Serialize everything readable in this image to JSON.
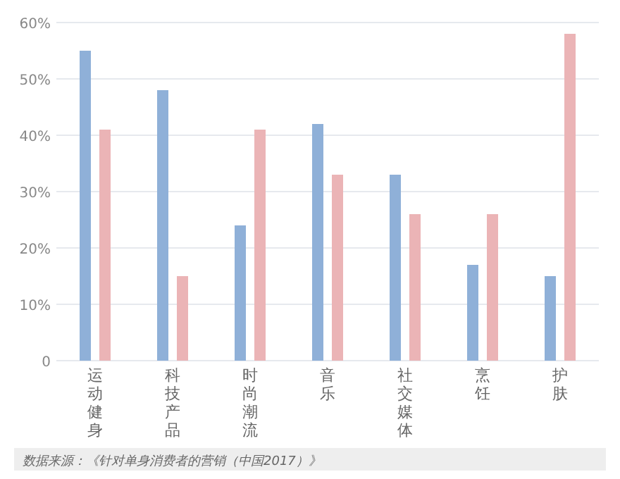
{
  "chart_data": {
    "type": "bar",
    "categories": [
      "运动健身",
      "科技产品",
      "时尚潮流",
      "音乐",
      "社交媒体",
      "烹饪",
      "护肤"
    ],
    "series": [
      {
        "color": "#8fb0d8",
        "values": [
          55,
          48,
          24,
          42,
          33,
          17,
          15
        ]
      },
      {
        "color": "#ebb4b6",
        "values": [
          41,
          15,
          41,
          33,
          26,
          26,
          58
        ]
      }
    ],
    "ylim": [
      0,
      60
    ],
    "yticks": [
      {
        "value": 0,
        "label": "0"
      },
      {
        "value": 10,
        "label": "10%"
      },
      {
        "value": 20,
        "label": "20%"
      },
      {
        "value": 30,
        "label": "30%"
      },
      {
        "value": 40,
        "label": "40%"
      },
      {
        "value": 50,
        "label": "50%"
      },
      {
        "value": 60,
        "label": "60%"
      }
    ],
    "grid": "y",
    "annotations": [
      "数据来源：《针对单身消费者的营销（中国2017）》"
    ]
  }
}
